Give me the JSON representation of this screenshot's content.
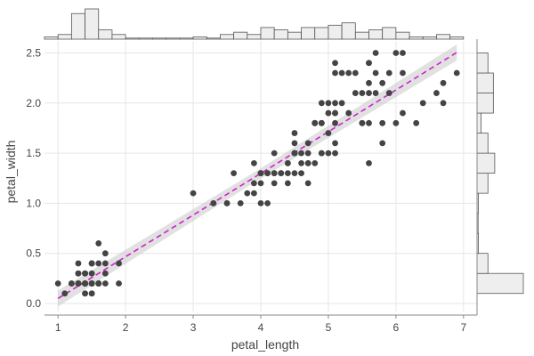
{
  "chart_data": {
    "type": "scatter",
    "subtype": "joint plot with marginal histograms and regression line",
    "xlabel": "petal_length",
    "ylabel": "petal_width",
    "xlim": [
      0.8,
      7.2
    ],
    "ylim": [
      -0.08,
      2.62
    ],
    "x_ticks": [
      1,
      2,
      3,
      4,
      5,
      6,
      7
    ],
    "y_ticks": [
      0.0,
      0.5,
      1.0,
      1.5,
      2.0,
      2.5
    ],
    "grid": true,
    "colors": {
      "points": "#444444",
      "regression_line": "#d21ed2",
      "confidence_band": "#c8c8c8",
      "hist_fill": "#eeeeee",
      "hist_edge": "#555555",
      "grid": "#e6e6e6",
      "axis": "#888888"
    },
    "regression": {
      "slope": 0.416,
      "intercept": -0.366,
      "ci_halfwidth": 0.05,
      "x_range": [
        1.0,
        6.9
      ]
    },
    "points": [
      [
        1.4,
        0.2
      ],
      [
        1.4,
        0.2
      ],
      [
        1.3,
        0.2
      ],
      [
        1.5,
        0.2
      ],
      [
        1.4,
        0.2
      ],
      [
        1.7,
        0.4
      ],
      [
        1.4,
        0.3
      ],
      [
        1.5,
        0.2
      ],
      [
        1.4,
        0.2
      ],
      [
        1.5,
        0.1
      ],
      [
        1.5,
        0.2
      ],
      [
        1.6,
        0.2
      ],
      [
        1.4,
        0.1
      ],
      [
        1.1,
        0.1
      ],
      [
        1.2,
        0.2
      ],
      [
        1.5,
        0.4
      ],
      [
        1.3,
        0.4
      ],
      [
        1.4,
        0.3
      ],
      [
        1.7,
        0.3
      ],
      [
        1.5,
        0.3
      ],
      [
        1.7,
        0.2
      ],
      [
        1.5,
        0.4
      ],
      [
        1.0,
        0.2
      ],
      [
        1.7,
        0.5
      ],
      [
        1.9,
        0.2
      ],
      [
        1.6,
        0.2
      ],
      [
        1.6,
        0.4
      ],
      [
        1.5,
        0.2
      ],
      [
        1.4,
        0.2
      ],
      [
        1.6,
        0.2
      ],
      [
        1.6,
        0.2
      ],
      [
        1.5,
        0.4
      ],
      [
        1.5,
        0.1
      ],
      [
        1.4,
        0.2
      ],
      [
        1.5,
        0.2
      ],
      [
        1.2,
        0.2
      ],
      [
        1.3,
        0.2
      ],
      [
        1.4,
        0.1
      ],
      [
        1.3,
        0.2
      ],
      [
        1.5,
        0.2
      ],
      [
        1.3,
        0.3
      ],
      [
        1.3,
        0.3
      ],
      [
        1.3,
        0.2
      ],
      [
        1.6,
        0.6
      ],
      [
        1.9,
        0.4
      ],
      [
        1.4,
        0.3
      ],
      [
        1.6,
        0.2
      ],
      [
        1.4,
        0.2
      ],
      [
        1.5,
        0.2
      ],
      [
        1.4,
        0.2
      ],
      [
        4.7,
        1.4
      ],
      [
        4.5,
        1.5
      ],
      [
        4.9,
        1.5
      ],
      [
        4.0,
        1.3
      ],
      [
        4.6,
        1.5
      ],
      [
        4.5,
        1.3
      ],
      [
        4.7,
        1.6
      ],
      [
        3.3,
        1.0
      ],
      [
        4.6,
        1.3
      ],
      [
        3.9,
        1.4
      ],
      [
        3.5,
        1.0
      ],
      [
        4.2,
        1.5
      ],
      [
        4.0,
        1.0
      ],
      [
        4.7,
        1.4
      ],
      [
        3.6,
        1.3
      ],
      [
        4.4,
        1.4
      ],
      [
        4.5,
        1.5
      ],
      [
        4.1,
        1.0
      ],
      [
        4.5,
        1.5
      ],
      [
        3.9,
        1.1
      ],
      [
        4.8,
        1.8
      ],
      [
        4.0,
        1.3
      ],
      [
        4.9,
        1.5
      ],
      [
        4.7,
        1.2
      ],
      [
        4.3,
        1.3
      ],
      [
        4.4,
        1.4
      ],
      [
        4.8,
        1.4
      ],
      [
        5.0,
        1.7
      ],
      [
        4.5,
        1.5
      ],
      [
        3.5,
        1.0
      ],
      [
        3.8,
        1.1
      ],
      [
        3.7,
        1.0
      ],
      [
        3.9,
        1.2
      ],
      [
        5.1,
        1.6
      ],
      [
        4.5,
        1.5
      ],
      [
        4.5,
        1.6
      ],
      [
        4.7,
        1.5
      ],
      [
        4.4,
        1.3
      ],
      [
        4.1,
        1.3
      ],
      [
        4.0,
        1.3
      ],
      [
        4.4,
        1.2
      ],
      [
        4.6,
        1.4
      ],
      [
        4.0,
        1.2
      ],
      [
        3.3,
        1.0
      ],
      [
        4.2,
        1.3
      ],
      [
        4.2,
        1.2
      ],
      [
        4.2,
        1.3
      ],
      [
        4.3,
        1.3
      ],
      [
        3.0,
        1.1
      ],
      [
        4.1,
        1.3
      ],
      [
        6.0,
        2.5
      ],
      [
        5.1,
        1.9
      ],
      [
        5.9,
        2.1
      ],
      [
        5.6,
        1.8
      ],
      [
        5.8,
        2.2
      ],
      [
        6.6,
        2.1
      ],
      [
        4.5,
        1.7
      ],
      [
        6.3,
        1.8
      ],
      [
        5.8,
        1.8
      ],
      [
        6.1,
        2.5
      ],
      [
        5.1,
        2.0
      ],
      [
        5.3,
        1.9
      ],
      [
        5.5,
        2.1
      ],
      [
        5.0,
        2.0
      ],
      [
        5.1,
        2.4
      ],
      [
        5.3,
        2.3
      ],
      [
        5.5,
        1.8
      ],
      [
        6.7,
        2.2
      ],
      [
        6.9,
        2.3
      ],
      [
        5.0,
        1.5
      ],
      [
        5.7,
        2.3
      ],
      [
        4.9,
        2.0
      ],
      [
        6.7,
        2.0
      ],
      [
        4.9,
        1.8
      ],
      [
        5.7,
        2.1
      ],
      [
        6.0,
        1.8
      ],
      [
        4.8,
        1.8
      ],
      [
        4.9,
        1.8
      ],
      [
        5.6,
        2.1
      ],
      [
        5.8,
        1.6
      ],
      [
        6.1,
        1.9
      ],
      [
        6.4,
        2.0
      ],
      [
        5.6,
        2.2
      ],
      [
        5.1,
        1.5
      ],
      [
        5.6,
        1.4
      ],
      [
        6.1,
        2.3
      ],
      [
        5.6,
        2.4
      ],
      [
        5.5,
        1.8
      ],
      [
        4.8,
        1.8
      ],
      [
        5.4,
        2.1
      ],
      [
        5.6,
        2.4
      ],
      [
        5.1,
        2.3
      ],
      [
        5.1,
        1.9
      ],
      [
        5.9,
        2.3
      ],
      [
        5.7,
        2.5
      ],
      [
        5.2,
        2.3
      ],
      [
        5.0,
        1.9
      ],
      [
        5.2,
        2.0
      ],
      [
        5.4,
        2.3
      ],
      [
        5.1,
        1.8
      ]
    ],
    "top_hist": {
      "bin_edges": [
        0.8,
        1.0,
        1.2,
        1.4,
        1.6,
        1.8,
        2.0,
        2.2,
        2.4,
        2.6,
        2.8,
        3.0,
        3.2,
        3.4,
        3.6,
        3.8,
        4.0,
        4.2,
        4.4,
        4.6,
        4.8,
        5.0,
        5.2,
        5.4,
        5.6,
        5.8,
        6.0,
        6.2,
        6.4,
        6.6,
        6.8,
        7.0
      ],
      "counts": [
        1,
        2,
        11,
        13,
        4,
        2,
        0,
        0,
        0,
        0,
        0,
        1,
        0,
        2,
        3,
        2,
        5,
        4,
        3,
        5,
        5,
        6,
        7,
        3,
        4,
        5,
        3,
        1,
        1,
        2,
        1
      ]
    },
    "right_hist": {
      "bin_edges": [
        0.1,
        0.3,
        0.5,
        0.7,
        0.9,
        1.1,
        1.3,
        1.5,
        1.7,
        1.9,
        2.1,
        2.3,
        2.5
      ],
      "counts": [
        34,
        8,
        1,
        0,
        1,
        8,
        13,
        8,
        3,
        12,
        12,
        8
      ]
    }
  }
}
